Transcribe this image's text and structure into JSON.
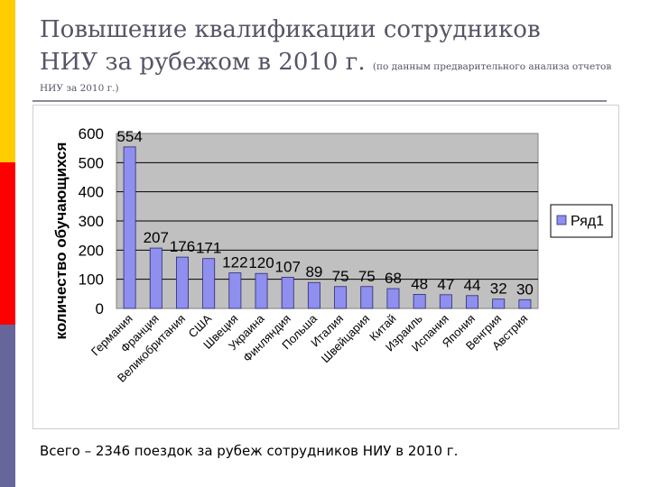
{
  "title": {
    "line1": "Повышение квалификации сотрудников",
    "line2": "НИУ за рубежом в 2010 г.",
    "note": "(по данным предварительного анализа отчетов",
    "note_cont": "НИУ за 2010 г.)"
  },
  "colors": {
    "bar": "#8f8ff0",
    "bar_stroke": "#2a2a70",
    "plot_bg": "#c0c0c0"
  },
  "chart_data": {
    "type": "bar",
    "categories": [
      "Германия",
      "Франция",
      "Великобритания",
      "США",
      "Швеция",
      "Украина",
      "Финляндия",
      "Польша",
      "Италия",
      "Швейцария",
      "Китай",
      "Израиль",
      "Испания",
      "Япония",
      "Венгрия",
      "Австрия"
    ],
    "series": [
      {
        "name": "Ряд1",
        "values": [
          554,
          207,
          176,
          171,
          122,
          120,
          107,
          89,
          75,
          75,
          68,
          48,
          47,
          44,
          32,
          30
        ]
      }
    ],
    "title": "",
    "xlabel": "",
    "ylabel": "количество обучающихся",
    "ylim": [
      0,
      600
    ],
    "yticks": [
      0,
      100,
      200,
      300,
      400,
      500,
      600
    ],
    "grid": true,
    "legend": "right",
    "data_labels": true
  },
  "footer": "Всего – 2346 поездок за рубеж сотрудников НИУ в 2010 г."
}
